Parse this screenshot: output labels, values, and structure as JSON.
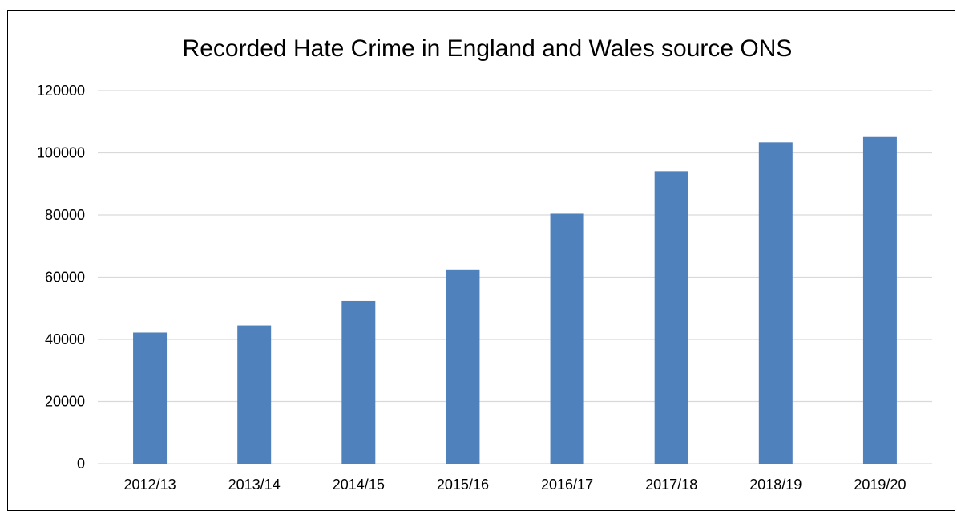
{
  "chart_data": {
    "type": "bar",
    "title": "Recorded Hate Crime in England and Wales source ONS",
    "xlabel": "",
    "ylabel": "",
    "categories": [
      "2012/13",
      "2013/14",
      "2014/15",
      "2015/16",
      "2016/17",
      "2017/18",
      "2018/19",
      "2019/20"
    ],
    "values": [
      42200,
      44500,
      52400,
      62500,
      80400,
      94100,
      103400,
      105100
    ],
    "ylim": [
      0,
      120000
    ],
    "yticks": [
      "0",
      "20000",
      "40000",
      "60000",
      "80000",
      "100000",
      "120000"
    ],
    "grid": true,
    "legend": "none",
    "bar_color": "#4f81bd",
    "grid_color": "#d9d9d9"
  }
}
